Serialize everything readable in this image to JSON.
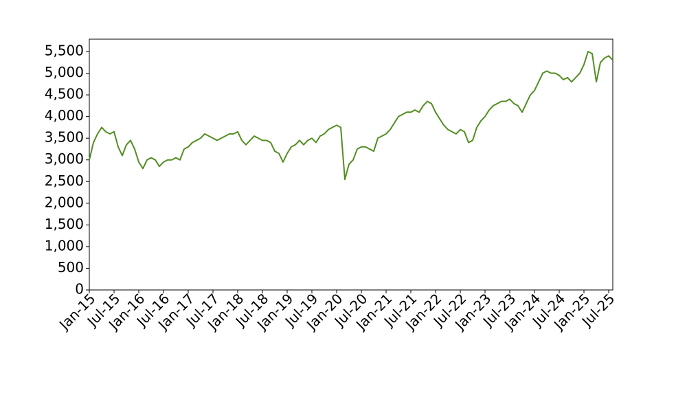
{
  "chart_data": {
    "type": "line",
    "x": [
      "2015-01",
      "2015-02",
      "2015-03",
      "2015-04",
      "2015-05",
      "2015-06",
      "2015-07",
      "2015-08",
      "2015-09",
      "2015-10",
      "2015-11",
      "2015-12",
      "2016-01",
      "2016-02",
      "2016-03",
      "2016-04",
      "2016-05",
      "2016-06",
      "2016-07",
      "2016-08",
      "2016-09",
      "2016-10",
      "2016-11",
      "2016-12",
      "2017-01",
      "2017-02",
      "2017-03",
      "2017-04",
      "2017-05",
      "2017-06",
      "2017-07",
      "2017-08",
      "2017-09",
      "2017-10",
      "2017-11",
      "2017-12",
      "2018-01",
      "2018-02",
      "2018-03",
      "2018-04",
      "2018-05",
      "2018-06",
      "2018-07",
      "2018-08",
      "2018-09",
      "2018-10",
      "2018-11",
      "2018-12",
      "2019-01",
      "2019-02",
      "2019-03",
      "2019-04",
      "2019-05",
      "2019-06",
      "2019-07",
      "2019-08",
      "2019-09",
      "2019-10",
      "2019-11",
      "2019-12",
      "2020-01",
      "2020-02",
      "2020-03",
      "2020-04",
      "2020-05",
      "2020-06",
      "2020-07",
      "2020-08",
      "2020-09",
      "2020-10",
      "2020-11",
      "2020-12",
      "2021-01",
      "2021-02",
      "2021-03",
      "2021-04",
      "2021-05",
      "2021-06",
      "2021-07",
      "2021-08",
      "2021-09",
      "2021-10",
      "2021-11",
      "2021-12",
      "2022-01",
      "2022-02",
      "2022-03",
      "2022-04",
      "2022-05",
      "2022-06",
      "2022-07",
      "2022-08",
      "2022-09",
      "2022-10",
      "2022-11",
      "2022-12",
      "2023-01",
      "2023-02",
      "2023-03",
      "2023-04",
      "2023-05",
      "2023-06",
      "2023-07",
      "2023-08",
      "2023-09",
      "2023-10",
      "2023-11",
      "2023-12",
      "2024-01",
      "2024-02",
      "2024-03",
      "2024-04",
      "2024-05",
      "2024-06",
      "2024-07",
      "2024-08",
      "2024-09",
      "2024-10",
      "2024-11",
      "2024-12",
      "2025-01",
      "2025-02",
      "2025-03",
      "2025-04",
      "2025-05",
      "2025-06",
      "2025-07",
      "2025-08"
    ],
    "series": [
      {
        "color": "#538d22",
        "values": [
          3000,
          3400,
          3600,
          3750,
          3650,
          3600,
          3650,
          3300,
          3100,
          3350,
          3450,
          3250,
          2950,
          2800,
          3000,
          3050,
          3000,
          2850,
          2950,
          3000,
          3000,
          3050,
          3000,
          3250,
          3300,
          3400,
          3450,
          3500,
          3600,
          3550,
          3500,
          3450,
          3500,
          3550,
          3600,
          3600,
          3650,
          3450,
          3350,
          3450,
          3550,
          3500,
          3450,
          3450,
          3400,
          3200,
          3150,
          2950,
          3150,
          3300,
          3350,
          3450,
          3350,
          3450,
          3500,
          3400,
          3550,
          3600,
          3700,
          3750,
          3800,
          3750,
          2550,
          2900,
          3000,
          3250,
          3300,
          3300,
          3250,
          3200,
          3500,
          3550,
          3600,
          3700,
          3850,
          4000,
          4050,
          4100,
          4100,
          4150,
          4100,
          4250,
          4350,
          4300,
          4100,
          3950,
          3800,
          3700,
          3650,
          3600,
          3700,
          3650,
          3400,
          3450,
          3750,
          3900,
          4000,
          4150,
          4250,
          4300,
          4350,
          4350,
          4400,
          4300,
          4250,
          4100,
          4300,
          4500,
          4600,
          4800,
          5000,
          5050,
          5000,
          5000,
          4950,
          4850,
          4900,
          4800,
          4900,
          5000,
          5200,
          5500,
          5450,
          4800,
          5250,
          5350,
          5400,
          5300
        ]
      }
    ],
    "xlim": [
      "2015-01",
      "2025-08"
    ],
    "xticks": [
      {
        "value": "2015-01",
        "label": "Jan-15"
      },
      {
        "value": "2015-07",
        "label": "Jul-15"
      },
      {
        "value": "2016-01",
        "label": "Jan-16"
      },
      {
        "value": "2016-07",
        "label": "Jul-16"
      },
      {
        "value": "2017-01",
        "label": "Jan-17"
      },
      {
        "value": "2017-07",
        "label": "Jul-17"
      },
      {
        "value": "2018-01",
        "label": "Jan-18"
      },
      {
        "value": "2018-07",
        "label": "Jul-18"
      },
      {
        "value": "2019-01",
        "label": "Jan-19"
      },
      {
        "value": "2019-07",
        "label": "Jul-19"
      },
      {
        "value": "2020-01",
        "label": "Jan-20"
      },
      {
        "value": "2020-07",
        "label": "Jul-20"
      },
      {
        "value": "2021-01",
        "label": "Jan-21"
      },
      {
        "value": "2021-07",
        "label": "Jul-21"
      },
      {
        "value": "2022-01",
        "label": "Jan-22"
      },
      {
        "value": "2022-07",
        "label": "Jul-22"
      },
      {
        "value": "2023-01",
        "label": "Jan-23"
      },
      {
        "value": "2023-07",
        "label": "Jul-23"
      },
      {
        "value": "2024-01",
        "label": "Jan-24"
      },
      {
        "value": "2024-07",
        "label": "Jul-24"
      },
      {
        "value": "2025-01",
        "label": "Jan-25"
      },
      {
        "value": "2025-07",
        "label": "Jul-25"
      }
    ],
    "ylim": [
      0,
      5785
    ],
    "yticks": [
      0,
      500,
      {
        "value": 1000,
        "label": "1,000"
      },
      {
        "value": 1500,
        "label": "1,500"
      },
      {
        "value": 2000,
        "label": "2,000"
      },
      {
        "value": 2500,
        "label": "2,500"
      },
      {
        "value": 3000,
        "label": "3,000"
      },
      {
        "value": 3500,
        "label": "3,500"
      },
      {
        "value": 4000,
        "label": "4,000"
      },
      {
        "value": 4500,
        "label": "4,500"
      },
      {
        "value": 5000,
        "label": "5,000"
      },
      {
        "value": 5500,
        "label": "5,500"
      }
    ],
    "grid": false
  }
}
